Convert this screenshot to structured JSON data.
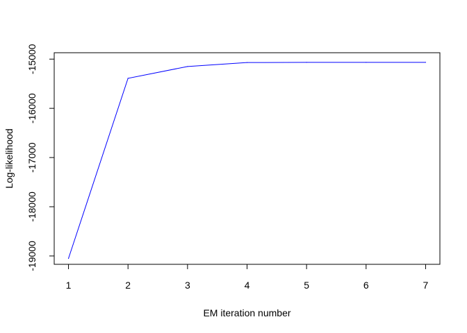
{
  "chart_data": {
    "type": "line",
    "title": "",
    "xlabel": "EM iteration number",
    "ylabel": "Log-likelihood",
    "xlim": [
      0.76,
      7.24
    ],
    "ylim": [
      -19170,
      -14870
    ],
    "x_ticks": [
      1,
      2,
      3,
      4,
      5,
      6,
      7
    ],
    "y_ticks": [
      -19000,
      -18000,
      -17000,
      -16000,
      -15000
    ],
    "grid": false,
    "legend": "none",
    "series": [
      {
        "color": "#0000ff",
        "x": [
          1,
          2,
          3,
          4,
          5,
          6,
          7
        ],
        "y": [
          -19050,
          -15390,
          -15150,
          -15070,
          -15065,
          -15065,
          -15065
        ]
      }
    ]
  }
}
